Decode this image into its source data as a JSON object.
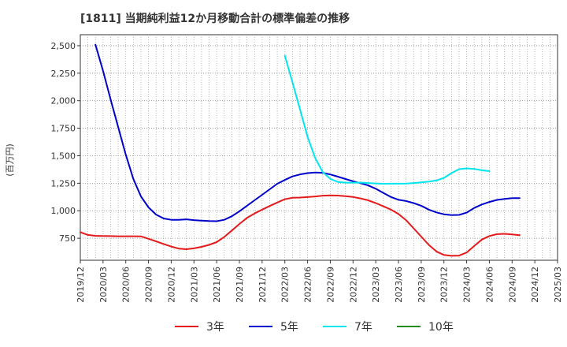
{
  "chart_data": {
    "type": "line",
    "title": "[1811]  当期純利益12か月移動合計の標準偏差の推移",
    "ylabel": "(百万円)",
    "xlabel": "",
    "ylim": [
      550,
      2600
    ],
    "yticks": [
      750,
      1000,
      1250,
      1500,
      1750,
      2000,
      2250,
      2500
    ],
    "ytick_labels": [
      "750",
      "1,000",
      "1,250",
      "1,500",
      "1,750",
      "2,000",
      "2,250",
      "2,500"
    ],
    "xticks": [
      "2019/12",
      "2020/03",
      "2020/06",
      "2020/09",
      "2020/12",
      "2021/03",
      "2021/06",
      "2021/09",
      "2021/12",
      "2022/03",
      "2022/06",
      "2022/09",
      "2022/12",
      "2023/03",
      "2023/06",
      "2023/09",
      "2023/12",
      "2024/03",
      "2024/06",
      "2024/09",
      "2024/12",
      "2025/03"
    ],
    "grid": true,
    "series": [
      {
        "name": "3年",
        "color": "#e41a1c",
        "start_index": 0,
        "values": [
          805,
          780,
          772,
          770,
          769,
          768,
          768,
          768,
          767,
          745,
          722,
          698,
          675,
          656,
          650,
          658,
          672,
          690,
          715,
          762,
          820,
          880,
          935,
          975,
          1010,
          1043,
          1075,
          1105,
          1118,
          1120,
          1124,
          1130,
          1137,
          1140,
          1138,
          1133,
          1125,
          1112,
          1095,
          1070,
          1040,
          1010,
          970,
          915,
          840,
          765,
          690,
          630,
          598,
          590,
          592,
          620,
          680,
          738,
          770,
          787,
          790,
          785,
          778
        ]
      },
      {
        "name": "5年",
        "color": "#0000cd",
        "start_index": 2,
        "values": [
          2510,
          2270,
          2010,
          1760,
          1510,
          1290,
          1130,
          1030,
          965,
          930,
          918,
          918,
          922,
          915,
          910,
          906,
          905,
          918,
          950,
          995,
          1045,
          1095,
          1145,
          1195,
          1245,
          1280,
          1312,
          1330,
          1342,
          1348,
          1345,
          1330,
          1310,
          1288,
          1268,
          1250,
          1230,
          1200,
          1162,
          1125,
          1100,
          1088,
          1070,
          1045,
          1010,
          985,
          968,
          960,
          962,
          983,
          1025,
          1057,
          1080,
          1098,
          1108,
          1114,
          1115
        ]
      },
      {
        "name": "7年",
        "color": "#00e5ee",
        "start_index": 27,
        "values": [
          2410,
          2170,
          1920,
          1670,
          1480,
          1352,
          1290,
          1262,
          1255,
          1255,
          1256,
          1252,
          1248,
          1245,
          1246,
          1246,
          1247,
          1252,
          1258,
          1265,
          1275,
          1298,
          1342,
          1378,
          1385,
          1380,
          1368,
          1360
        ]
      },
      {
        "name": "10年",
        "color": "#228b22",
        "start_index": 0,
        "values": []
      }
    ]
  }
}
